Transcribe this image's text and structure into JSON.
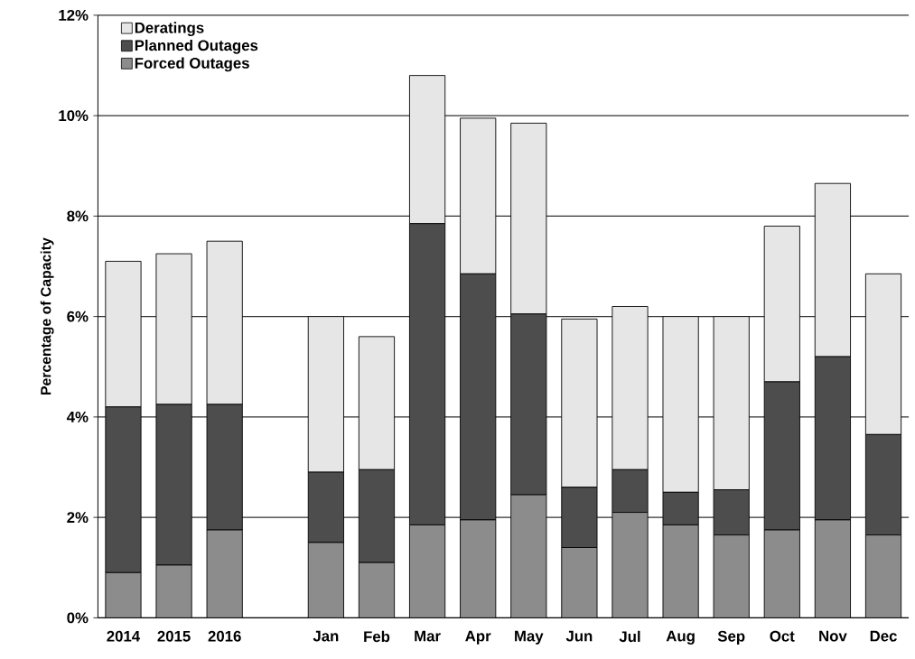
{
  "chart_data": {
    "type": "bar",
    "stacked": true,
    "ylabel": "Percentage of Capacity",
    "categories": [
      "2014",
      "2015",
      "2016",
      null,
      "Jan",
      "Feb",
      "Mar",
      "Apr",
      "May",
      "Jun",
      "Jul",
      "Aug",
      "Sep",
      "Oct",
      "Nov",
      "Dec"
    ],
    "series": [
      {
        "name": "Forced Outages",
        "color": "#8c8c8c",
        "values": [
          0.9,
          1.05,
          1.75,
          null,
          1.5,
          1.1,
          1.85,
          1.95,
          2.45,
          1.4,
          2.1,
          1.85,
          1.65,
          1.75,
          1.95,
          1.65
        ]
      },
      {
        "name": "Planned Outages",
        "color": "#4d4d4d",
        "values": [
          3.3,
          3.2,
          2.5,
          null,
          1.4,
          1.85,
          6.0,
          4.9,
          3.6,
          1.2,
          0.85,
          0.65,
          0.9,
          2.95,
          3.25,
          2.0
        ]
      },
      {
        "name": "Deratings",
        "color": "#e6e6e6",
        "values": [
          2.9,
          3.0,
          3.25,
          null,
          3.1,
          2.65,
          2.95,
          3.1,
          3.8,
          3.35,
          3.25,
          3.5,
          3.45,
          3.1,
          3.45,
          3.2
        ]
      }
    ],
    "ylim": [
      0,
      12
    ],
    "yticks": [
      {
        "value": 0,
        "label": "0%"
      },
      {
        "value": 2,
        "label": "2%"
      },
      {
        "value": 4,
        "label": "4%"
      },
      {
        "value": 6,
        "label": "6%"
      },
      {
        "value": 8,
        "label": "8%"
      },
      {
        "value": 10,
        "label": "10%"
      },
      {
        "value": 12,
        "label": "12%"
      }
    ],
    "grid": "y",
    "legend": "top left"
  }
}
